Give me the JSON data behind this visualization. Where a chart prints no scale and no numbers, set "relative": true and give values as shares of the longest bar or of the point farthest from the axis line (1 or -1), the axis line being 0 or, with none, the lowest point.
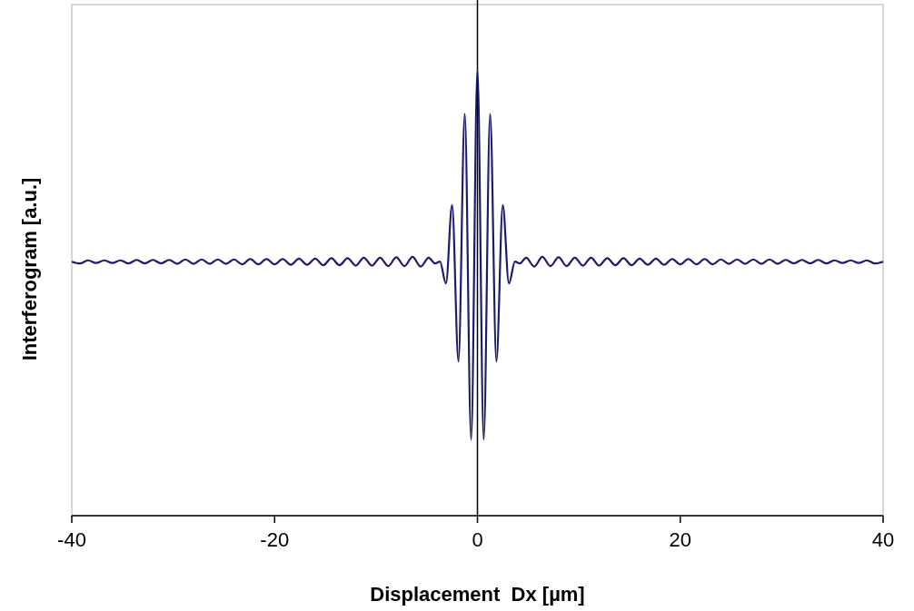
{
  "chart_data": {
    "type": "line",
    "relative": true,
    "xlabel": "Displacement  Dx [µm]",
    "ylabel": "Interferogram [a.u.]",
    "xlim": [
      -40,
      40
    ],
    "xticks": [
      -40,
      -20,
      0,
      20,
      40
    ],
    "grid": false,
    "marker": "none",
    "line_style": "solid",
    "ref_lines": [
      {
        "axis": "x",
        "value": 0,
        "color": "#000000"
      }
    ],
    "series": [
      {
        "color": "#1c1c6b",
        "x": [
          -40,
          -39.2,
          -38.4,
          -37.6,
          -36.8,
          -36,
          -35.2,
          -34.4,
          -33.6,
          -32.8,
          -32,
          -31.2,
          -30.4,
          -29.6,
          -28.8,
          -28,
          -27.2,
          -26.4,
          -25.6,
          -24.8,
          -24,
          -23.2,
          -22.4,
          -21.6,
          -20.8,
          -20,
          -19.2,
          -18.4,
          -17.6,
          -16.8,
          -16,
          -15.2,
          -14.4,
          -13.6,
          -12.8,
          -12,
          -11.2,
          -10.4,
          -9.6,
          -8.8,
          -8,
          -7.2,
          -6.4,
          -5.6,
          -4.8,
          -4.2,
          -3.7,
          -3.1,
          -2.5,
          -1.87,
          -1.25,
          -0.62,
          0,
          0.62,
          1.25,
          1.87,
          2.5,
          3.1,
          3.7,
          4.2,
          4.8,
          5.6,
          6.4,
          7.2,
          8,
          8.8,
          9.6,
          10.4,
          11.2,
          12,
          12.8,
          13.6,
          14.4,
          15.2,
          16,
          16.8,
          17.6,
          18.4,
          19.2,
          20,
          20.8,
          21.6,
          22.4,
          23.2,
          24,
          24.8,
          25.6,
          26.4,
          27.2,
          28,
          28.8,
          29.6,
          30.4,
          31.2,
          32,
          32.8,
          33.6,
          34.4,
          35.2,
          36,
          36.8,
          37.6,
          38.4,
          39.2,
          40
        ],
        "values": [
          0.57,
          0.566,
          0.573,
          0.567,
          0.573,
          0.567,
          0.573,
          0.566,
          0.574,
          0.566,
          0.574,
          0.566,
          0.574,
          0.565,
          0.575,
          0.565,
          0.575,
          0.565,
          0.575,
          0.565,
          0.575,
          0.564,
          0.576,
          0.564,
          0.576,
          0.564,
          0.576,
          0.563,
          0.577,
          0.563,
          0.577,
          0.562,
          0.578,
          0.562,
          0.578,
          0.561,
          0.579,
          0.561,
          0.579,
          0.56,
          0.58,
          0.56,
          0.581,
          0.559,
          0.579,
          0.566,
          0.57,
          0.521,
          0.697,
          0.346,
          0.902,
          0.171,
          1.0,
          0.171,
          0.902,
          0.346,
          0.697,
          0.521,
          0.57,
          0.566,
          0.579,
          0.559,
          0.581,
          0.56,
          0.58,
          0.56,
          0.579,
          0.561,
          0.579,
          0.561,
          0.578,
          0.562,
          0.578,
          0.562,
          0.577,
          0.563,
          0.577,
          0.563,
          0.576,
          0.564,
          0.576,
          0.564,
          0.576,
          0.564,
          0.575,
          0.565,
          0.575,
          0.565,
          0.575,
          0.565,
          0.575,
          0.565,
          0.574,
          0.566,
          0.574,
          0.566,
          0.574,
          0.566,
          0.573,
          0.567,
          0.573,
          0.567,
          0.573,
          0.566,
          0.57
        ]
      }
    ]
  }
}
